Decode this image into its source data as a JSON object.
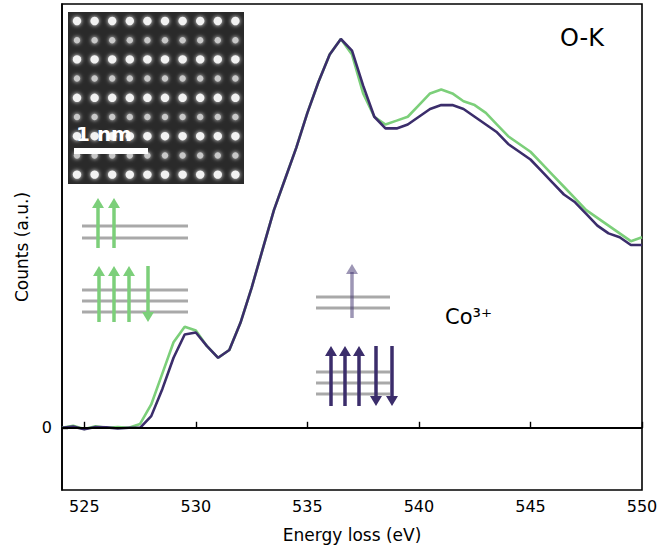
{
  "chart_data": {
    "type": "line",
    "x_label": "Energy loss (eV)",
    "y_label": "Counts (a.u.)",
    "x": [
      524,
      524.5,
      525,
      525.5,
      526,
      526.5,
      527,
      527.5,
      528,
      528.5,
      529,
      529.5,
      530,
      530.5,
      531,
      531.5,
      532,
      532.5,
      533,
      533.5,
      534,
      534.5,
      535,
      535.5,
      536,
      536.5,
      537,
      537.5,
      538,
      538.5,
      539,
      539.5,
      540,
      540.5,
      541,
      541.5,
      542,
      542.5,
      543,
      543.5,
      544,
      544.5,
      545,
      545.5,
      546,
      546.5,
      547,
      547.5,
      548,
      548.5,
      549,
      549.5,
      550
    ],
    "series": [
      {
        "color": "#7ccf7a",
        "values": [
          0,
          0.005,
          -0.003,
          0.004,
          0,
          0.002,
          0,
          0.01,
          0.06,
          0.14,
          0.22,
          0.26,
          0.25,
          0.21,
          0.18,
          0.2,
          0.27,
          0.36,
          0.46,
          0.56,
          0.64,
          0.72,
          0.81,
          0.89,
          0.96,
          1.0,
          0.96,
          0.86,
          0.8,
          0.78,
          0.79,
          0.8,
          0.83,
          0.86,
          0.87,
          0.86,
          0.84,
          0.83,
          0.81,
          0.78,
          0.75,
          0.73,
          0.71,
          0.68,
          0.65,
          0.62,
          0.59,
          0.56,
          0.54,
          0.52,
          0.5,
          0.48,
          0.49
        ]
      },
      {
        "color": "#3b2d6b",
        "values": [
          0,
          0.003,
          -0.004,
          0.002,
          0.001,
          -0.002,
          0,
          0,
          0.03,
          0.1,
          0.18,
          0.24,
          0.245,
          0.21,
          0.18,
          0.2,
          0.27,
          0.36,
          0.46,
          0.56,
          0.64,
          0.72,
          0.81,
          0.89,
          0.96,
          1.0,
          0.97,
          0.88,
          0.8,
          0.77,
          0.77,
          0.78,
          0.8,
          0.82,
          0.83,
          0.83,
          0.82,
          0.8,
          0.78,
          0.76,
          0.73,
          0.71,
          0.69,
          0.66,
          0.63,
          0.6,
          0.58,
          0.55,
          0.52,
          0.5,
          0.49,
          0.47,
          0.47
        ]
      }
    ],
    "xlim": [
      524,
      550
    ],
    "xticks": [
      525,
      530,
      535,
      540,
      545,
      550
    ],
    "ylim": [
      -0.16,
      1.09
    ],
    "yticks": [
      0
    ],
    "grid": true,
    "line_style": "solid",
    "annotations": [
      {
        "text": "O-K"
      },
      {
        "text": "Co³⁺"
      },
      {
        "text": "1 nm"
      }
    ]
  }
}
